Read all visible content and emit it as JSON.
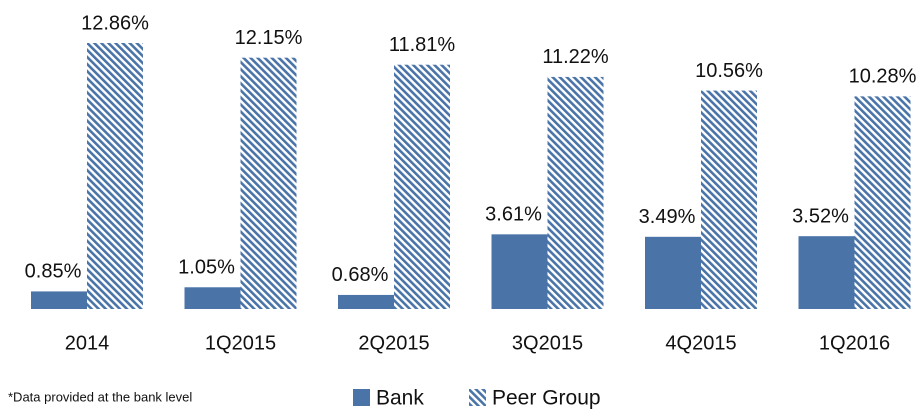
{
  "chart_data": {
    "type": "bar",
    "categories": [
      "2014",
      "1Q2015",
      "2Q2015",
      "3Q2015",
      "4Q2015",
      "1Q2016"
    ],
    "series": [
      {
        "name": "Bank",
        "color": "#4a74a8",
        "values": [
          0.85,
          1.05,
          0.68,
          3.61,
          3.49,
          3.52
        ],
        "value_labels": [
          "0.85%",
          "1.05%",
          "0.68%",
          "3.61%",
          "3.49%",
          "3.52%"
        ]
      },
      {
        "name": "Peer Group",
        "color": "#4a74a8",
        "pattern": "hatch",
        "values": [
          12.86,
          12.15,
          11.81,
          11.22,
          10.56,
          10.28
        ],
        "value_labels": [
          "12.86%",
          "12.15%",
          "11.81%",
          "11.22%",
          "10.56%",
          "10.28%"
        ]
      }
    ],
    "footnote": "*Data provided at the bank level"
  }
}
